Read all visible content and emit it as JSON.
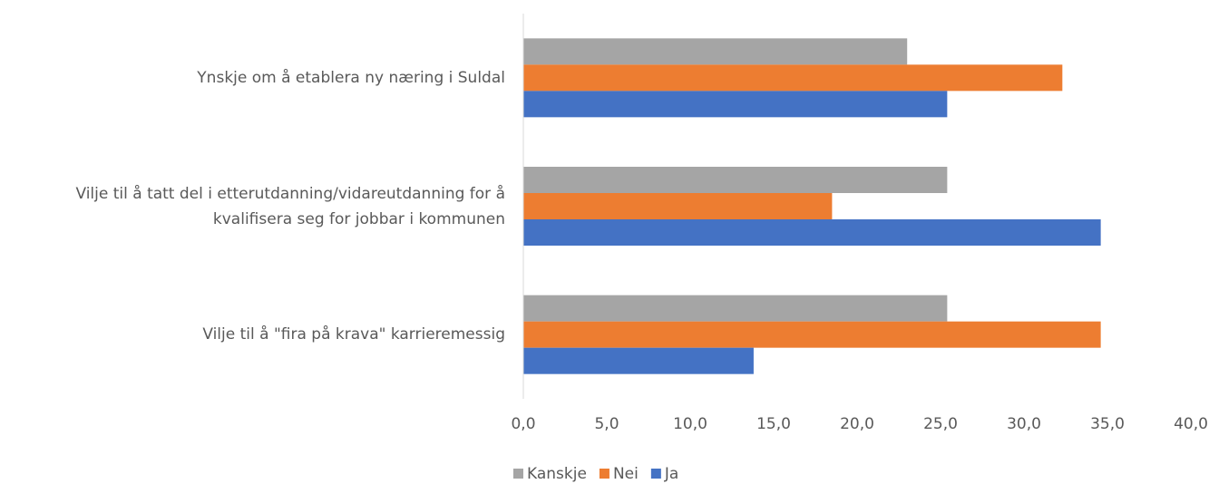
{
  "chart_data": {
    "type": "hbar",
    "categories": [
      "Ynskje om å etablera ny næring i Suldal",
      "Vilje til å tatt del i etterutdanning/vidareutdanning for å kvalifisera seg for jobbar i kommunen",
      "Vilje til å \"fira på krava\" karrieremessig"
    ],
    "series": [
      {
        "name": "Kanskje",
        "color": "#a5a5a5",
        "values": [
          23.0,
          25.4,
          25.4
        ]
      },
      {
        "name": "Nei",
        "color": "#ed7d31",
        "values": [
          32.3,
          18.5,
          34.6
        ]
      },
      {
        "name": "Ja",
        "color": "#4472c4",
        "values": [
          25.4,
          34.6,
          13.8
        ]
      }
    ],
    "xlim": [
      0,
      40
    ],
    "xticks": [
      {
        "value": 0,
        "label": "0,0"
      },
      {
        "value": 5,
        "label": "5,0"
      },
      {
        "value": 10,
        "label": "10,0"
      },
      {
        "value": 15,
        "label": "15,0"
      },
      {
        "value": 20,
        "label": "20,0"
      },
      {
        "value": 25,
        "label": "25,0"
      },
      {
        "value": 30,
        "label": "30,0"
      },
      {
        "value": 35,
        "label": "35,0"
      },
      {
        "value": 40,
        "label": "40,0"
      }
    ],
    "legend": "bottom"
  }
}
